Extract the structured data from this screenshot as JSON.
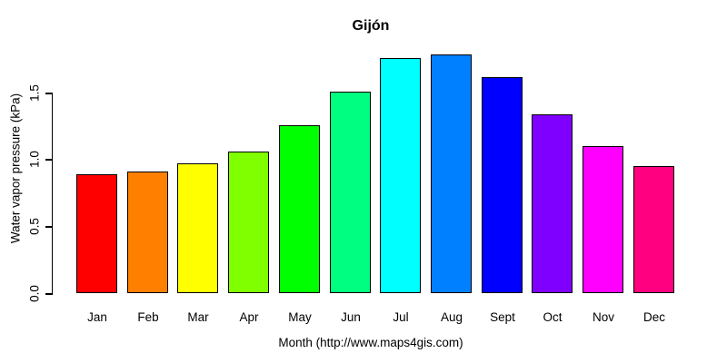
{
  "chart_data": {
    "type": "bar",
    "title": "Gijón",
    "xlabel": "Month (http://www.maps4gis.com)",
    "ylabel": "Water vapor pressure (kPa)",
    "categories": [
      "Jan",
      "Feb",
      "Mar",
      "Apr",
      "May",
      "Jun",
      "Jul",
      "Aug",
      "Sept",
      "Oct",
      "Nov",
      "Dec"
    ],
    "values": [
      0.89,
      0.91,
      0.97,
      1.06,
      1.26,
      1.51,
      1.76,
      1.79,
      1.62,
      1.34,
      1.1,
      0.95
    ],
    "bar_colors": [
      "#FF0000",
      "#FF8000",
      "#FFFF00",
      "#80FF00",
      "#00FF00",
      "#00FF80",
      "#00FFFF",
      "#0080FF",
      "#0000FF",
      "#8000FF",
      "#FF00FF",
      "#FF0080"
    ],
    "bar_border_color": "#000000",
    "yticks": [
      0.0,
      0.5,
      1.0,
      1.5
    ],
    "ytick_labels": [
      "0.0",
      "0.5",
      "1.0",
      "1.5"
    ],
    "ylim": [
      0,
      1.88
    ],
    "grid": false,
    "legend": "none",
    "background": "#FFFFFF",
    "axis_color": "#000000"
  }
}
